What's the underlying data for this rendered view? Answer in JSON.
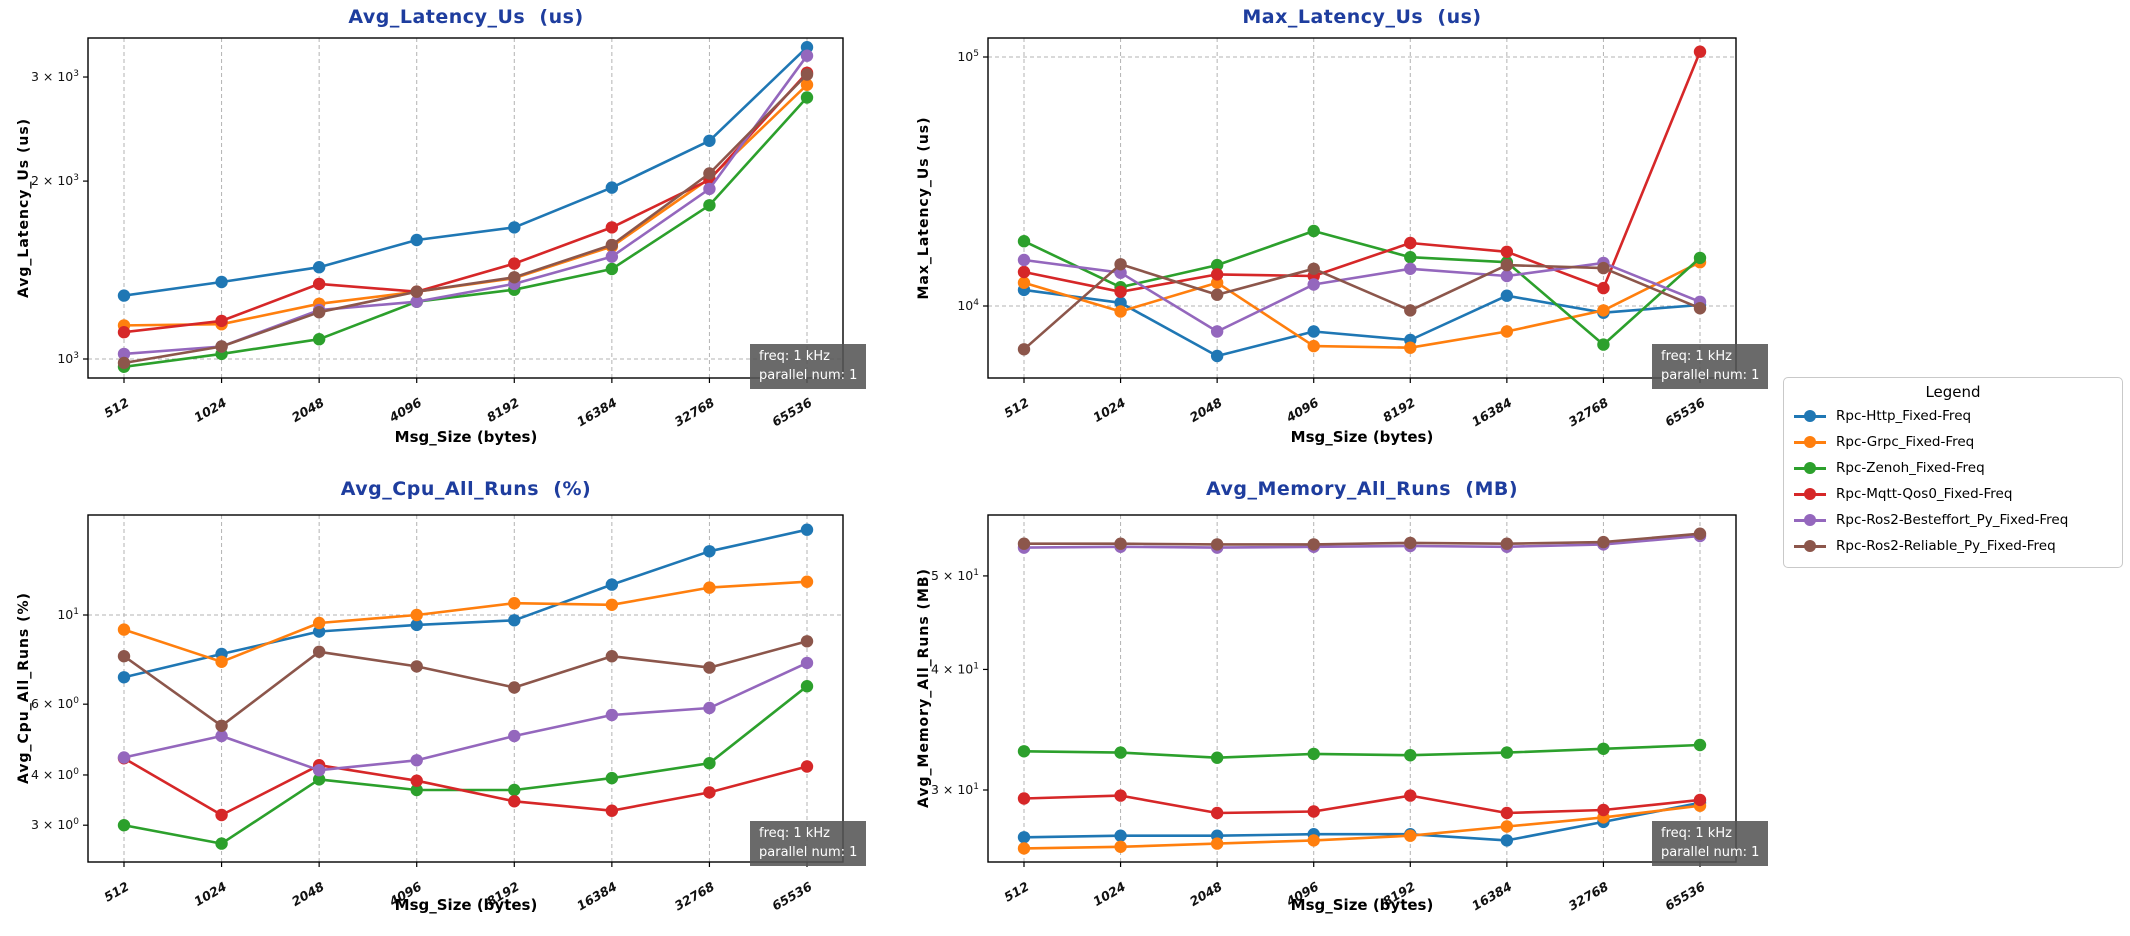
{
  "figure": {
    "background": "#ffffff",
    "title_color": "#1e3d9e",
    "xlabel": "Msg_Size (bytes)",
    "annotation": {
      "line1": "freq: 1 kHz",
      "line2": "parallel num: 1"
    }
  },
  "legend": {
    "title": "Legend",
    "items": [
      {
        "label": "Rpc-Http_Fixed-Freq",
        "color": "#1f77b4"
      },
      {
        "label": "Rpc-Grpc_Fixed-Freq",
        "color": "#ff7f0e"
      },
      {
        "label": "Rpc-Zenoh_Fixed-Freq",
        "color": "#2ca02c"
      },
      {
        "label": "Rpc-Mqtt-Qos0_Fixed-Freq",
        "color": "#d62728"
      },
      {
        "label": "Rpc-Ros2-Besteffort_Py_Fixed-Freq",
        "color": "#9467bd"
      },
      {
        "label": "Rpc-Ros2-Reliable_Py_Fixed-Freq",
        "color": "#8c564b"
      }
    ]
  },
  "chart_data": [
    {
      "type": "line",
      "yscale": "log",
      "title": "Avg_Latency_Us  (us)",
      "ylabel": "Avg_Latency_Us (us)",
      "xlabel": "Msg_Size (bytes)",
      "categories": [
        "512",
        "1024",
        "2048",
        "4096",
        "8192",
        "16384",
        "32768",
        "65536"
      ],
      "ylim": [
        930,
        3490
      ],
      "yticks": [
        {
          "value": 1000,
          "label": "10^3"
        },
        {
          "value": 2000,
          "label": "2 × 10^3"
        },
        {
          "value": 3000,
          "label": "3 × 10^3"
        }
      ],
      "ygrid": [
        1000
      ],
      "series": [
        {
          "name": "Rpc-Http_Fixed-Freq",
          "color": "#1f77b4",
          "values": [
            1280,
            1350,
            1430,
            1590,
            1670,
            1950,
            2340,
            3370
          ]
        },
        {
          "name": "Rpc-Grpc_Fixed-Freq",
          "color": "#ff7f0e",
          "values": [
            1140,
            1145,
            1240,
            1300,
            1370,
            1550,
            2020,
            2910
          ]
        },
        {
          "name": "Rpc-Zenoh_Fixed-Freq",
          "color": "#2ca02c",
          "values": [
            970,
            1020,
            1080,
            1250,
            1310,
            1420,
            1820,
            2770
          ]
        },
        {
          "name": "Rpc-Mqtt-Qos0_Fixed-Freq",
          "color": "#d62728",
          "values": [
            1110,
            1160,
            1340,
            1300,
            1450,
            1670,
            2010,
            3050
          ]
        },
        {
          "name": "Rpc-Ros2-Besteffort_Py_Fixed-Freq",
          "color": "#9467bd",
          "values": [
            1020,
            1050,
            1210,
            1250,
            1340,
            1490,
            1940,
            3260
          ]
        },
        {
          "name": "Rpc-Ros2-Reliable_Py_Fixed-Freq",
          "color": "#8c564b",
          "values": [
            985,
            1050,
            1200,
            1300,
            1375,
            1560,
            2060,
            3030
          ]
        }
      ]
    },
    {
      "type": "line",
      "yscale": "log",
      "title": "Max_Latency_Us  (us)",
      "ylabel": "Max_Latency_Us (us)",
      "xlabel": "Msg_Size (bytes)",
      "categories": [
        "512",
        "1024",
        "2048",
        "4096",
        "8192",
        "16384",
        "32768",
        "65536"
      ],
      "ylim": [
        5100,
        119000
      ],
      "yticks": [
        {
          "value": 10000,
          "label": "10^4"
        },
        {
          "value": 100000,
          "label": "10^5"
        }
      ],
      "ygrid": [
        10000,
        100000
      ],
      "series": [
        {
          "name": "Rpc-Http_Fixed-Freq",
          "color": "#1f77b4",
          "values": [
            11600,
            10300,
            6300,
            7900,
            7300,
            11000,
            9400,
            10100
          ]
        },
        {
          "name": "Rpc-Grpc_Fixed-Freq",
          "color": "#ff7f0e",
          "values": [
            12400,
            9500,
            12400,
            6900,
            6800,
            7900,
            9600,
            15000
          ]
        },
        {
          "name": "Rpc-Zenoh_Fixed-Freq",
          "color": "#2ca02c",
          "values": [
            18200,
            11900,
            14600,
            20000,
            15700,
            15000,
            7000,
            15600
          ]
        },
        {
          "name": "Rpc-Mqtt-Qos0_Fixed-Freq",
          "color": "#d62728",
          "values": [
            13700,
            11400,
            13400,
            13200,
            17900,
            16500,
            11800,
            105000
          ]
        },
        {
          "name": "Rpc-Ros2-Besteffort_Py_Fixed-Freq",
          "color": "#9467bd",
          "values": [
            15300,
            13600,
            7900,
            12200,
            14100,
            13200,
            14900,
            10400
          ]
        },
        {
          "name": "Rpc-Ros2-Reliable_Py_Fixed-Freq",
          "color": "#8c564b",
          "values": [
            6700,
            14700,
            11100,
            14100,
            9600,
            14600,
            14200,
            9800
          ]
        }
      ]
    },
    {
      "type": "line",
      "yscale": "log",
      "title": "Avg_Cpu_All_Runs  (%)",
      "ylabel": "Avg_Cpu_All_Runs (%)",
      "xlabel": "Msg_Size (bytes)",
      "categories": [
        "512",
        "1024",
        "2048",
        "4096",
        "8192",
        "16384",
        "32768",
        "65536"
      ],
      "ylim": [
        2.43,
        17.7
      ],
      "yticks": [
        {
          "value": 3,
          "label": "3 × 10^0"
        },
        {
          "value": 4,
          "label": "4 × 10^0"
        },
        {
          "value": 6,
          "label": "6 × 10^0"
        },
        {
          "value": 10,
          "label": "10^1"
        }
      ],
      "ygrid": [
        10
      ],
      "series": [
        {
          "name": "Rpc-Http_Fixed-Freq",
          "color": "#1f77b4",
          "values": [
            7.0,
            8.0,
            9.1,
            9.45,
            9.7,
            11.9,
            14.4,
            16.3
          ]
        },
        {
          "name": "Rpc-Grpc_Fixed-Freq",
          "color": "#ff7f0e",
          "values": [
            9.2,
            7.65,
            9.55,
            10.0,
            10.7,
            10.6,
            11.7,
            12.1
          ]
        },
        {
          "name": "Rpc-Zenoh_Fixed-Freq",
          "color": "#2ca02c",
          "values": [
            3.0,
            2.7,
            3.9,
            3.67,
            3.67,
            3.93,
            4.28,
            6.65
          ]
        },
        {
          "name": "Rpc-Mqtt-Qos0_Fixed-Freq",
          "color": "#d62728",
          "values": [
            4.4,
            3.18,
            4.23,
            3.87,
            3.44,
            3.26,
            3.62,
            4.2
          ]
        },
        {
          "name": "Rpc-Ros2-Besteffort_Py_Fixed-Freq",
          "color": "#9467bd",
          "values": [
            4.42,
            5.0,
            4.11,
            4.35,
            5.0,
            5.64,
            5.87,
            7.6
          ]
        },
        {
          "name": "Rpc-Ros2-Reliable_Py_Fixed-Freq",
          "color": "#8c564b",
          "values": [
            7.9,
            5.3,
            8.1,
            7.45,
            6.6,
            7.9,
            7.4,
            8.6
          ]
        }
      ]
    },
    {
      "type": "line",
      "yscale": "log",
      "title": "Avg_Memory_All_Runs  (MB)",
      "ylabel": "Avg_Memory_All_Runs (MB)",
      "xlabel": "Msg_Size (bytes)",
      "categories": [
        "512",
        "1024",
        "2048",
        "4096",
        "8192",
        "16384",
        "32768",
        "65536"
      ],
      "ylim": [
        25.3,
        57.7
      ],
      "yticks": [
        {
          "value": 30,
          "label": "3 × 10^1"
        },
        {
          "value": 40,
          "label": "4 × 10^1"
        },
        {
          "value": 50,
          "label": "5 × 10^1"
        }
      ],
      "ygrid": [],
      "series": [
        {
          "name": "Rpc-Http_Fixed-Freq",
          "color": "#1f77b4",
          "values": [
            26.8,
            26.9,
            26.9,
            27.0,
            27.0,
            26.6,
            27.8,
            29.1
          ]
        },
        {
          "name": "Rpc-Grpc_Fixed-Freq",
          "color": "#ff7f0e",
          "values": [
            26.1,
            26.2,
            26.4,
            26.6,
            26.9,
            27.5,
            28.1,
            28.9
          ]
        },
        {
          "name": "Rpc-Zenoh_Fixed-Freq",
          "color": "#2ca02c",
          "values": [
            32.9,
            32.8,
            32.4,
            32.7,
            32.6,
            32.8,
            33.1,
            33.4
          ]
        },
        {
          "name": "Rpc-Mqtt-Qos0_Fixed-Freq",
          "color": "#d62728",
          "values": [
            29.4,
            29.6,
            28.4,
            28.5,
            29.6,
            28.4,
            28.6,
            29.3
          ]
        },
        {
          "name": "Rpc-Ros2-Besteffort_Py_Fixed-Freq",
          "color": "#9467bd",
          "values": [
            53.5,
            53.6,
            53.5,
            53.6,
            53.7,
            53.6,
            53.9,
            55.0
          ]
        },
        {
          "name": "Rpc-Ros2-Reliable_Py_Fixed-Freq",
          "color": "#8c564b",
          "values": [
            54.0,
            54.0,
            53.9,
            53.9,
            54.1,
            54.0,
            54.2,
            55.3
          ]
        }
      ]
    }
  ]
}
